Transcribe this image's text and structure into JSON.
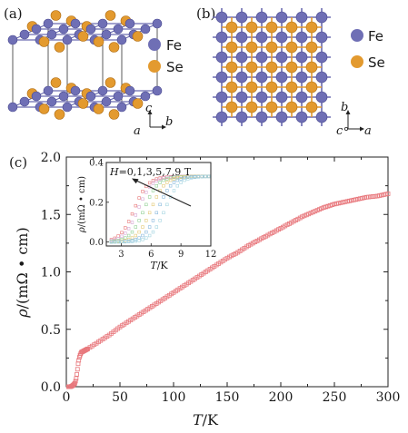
{
  "panels": {
    "a": {
      "label": "(a)",
      "legend": [
        {
          "symbol": "Fe",
          "color": "#6f6fb5"
        },
        {
          "symbol": "Se",
          "color": "#e39a2f"
        }
      ],
      "axes": {
        "up": "c",
        "right": "b",
        "out": "a"
      }
    },
    "b": {
      "label": "(b)",
      "legend": [
        {
          "symbol": "Fe",
          "color": "#6f6fb5"
        },
        {
          "symbol": "Se",
          "color": "#e39a2f"
        }
      ],
      "axes": {
        "up": "b",
        "right": "a",
        "out": "c"
      }
    },
    "c": {
      "label": "(c)"
    }
  },
  "colors": {
    "fe": "#6f6fb5",
    "se": "#e39a2f",
    "data": "#e8787d",
    "inset_curves": [
      "#e87777",
      "#d6a7d4",
      "#8fcf93",
      "#e3c874",
      "#86b7dc",
      "#a3d4e0"
    ]
  },
  "chart_data": [
    {
      "type": "scatter",
      "title": "",
      "xlabel_italic": "T",
      "xlabel_unit": "/K",
      "ylabel_italic": "ρ",
      "ylabel_unit": "/(mΩ • cm)",
      "xlim": [
        0,
        300
      ],
      "ylim": [
        0,
        2.0
      ],
      "xticks": [
        "0",
        "50",
        "100",
        "150",
        "200",
        "250",
        "300"
      ],
      "yticks": [
        "0.0",
        "0.5",
        "1.0",
        "1.5",
        "2.0"
      ],
      "series": [
        {
          "marker": "open-square",
          "x": [
            2,
            4,
            6,
            8,
            9,
            10,
            11,
            12,
            13,
            14,
            16,
            18,
            20,
            25,
            30,
            40,
            50,
            60,
            70,
            80,
            90,
            100,
            110,
            120,
            130,
            140,
            150,
            160,
            170,
            180,
            190,
            200,
            210,
            220,
            230,
            240,
            250,
            260,
            270,
            280,
            290,
            300
          ],
          "y": [
            0.0,
            0.0,
            0.01,
            0.03,
            0.06,
            0.12,
            0.2,
            0.25,
            0.28,
            0.3,
            0.31,
            0.32,
            0.33,
            0.36,
            0.39,
            0.45,
            0.52,
            0.58,
            0.64,
            0.7,
            0.76,
            0.82,
            0.88,
            0.94,
            1.0,
            1.06,
            1.12,
            1.17,
            1.23,
            1.28,
            1.33,
            1.38,
            1.43,
            1.48,
            1.52,
            1.56,
            1.59,
            1.61,
            1.63,
            1.65,
            1.66,
            1.68
          ]
        }
      ]
    },
    {
      "type": "line",
      "inset": true,
      "annotation": "H=0,1,3,5,7,9 T",
      "xlabel_italic": "T",
      "xlabel_unit": "/K",
      "ylabel_italic": "ρ",
      "ylabel_unit": "/(mΩ • cm)",
      "xlim": [
        1.5,
        12
      ],
      "ylim": [
        -0.02,
        0.4
      ],
      "xticks": [
        "3",
        "6",
        "9",
        "12"
      ],
      "yticks": [
        "0.0",
        "0.2",
        "0.4"
      ],
      "series": [
        {
          "field": 0,
          "midpoint": 4.3
        },
        {
          "field": 1,
          "midpoint": 4.7
        },
        {
          "field": 3,
          "midpoint": 5.3
        },
        {
          "field": 5,
          "midpoint": 6.0
        },
        {
          "field": 7,
          "midpoint": 6.7
        },
        {
          "field": 9,
          "midpoint": 7.4
        }
      ]
    }
  ]
}
